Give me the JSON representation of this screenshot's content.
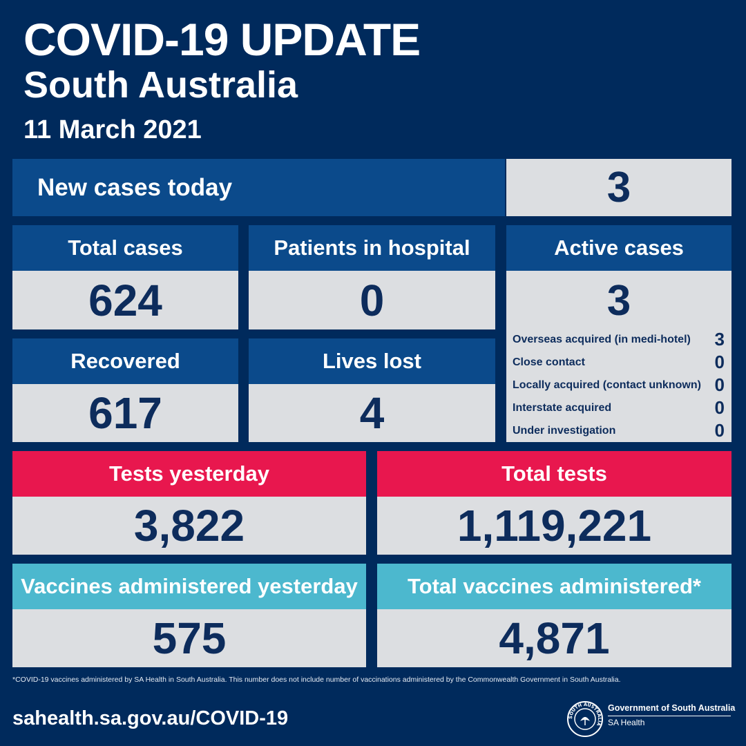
{
  "header": {
    "title": "COVID-19 UPDATE",
    "subtitle": "South Australia",
    "date": "11 March 2021"
  },
  "new_cases": {
    "label": "New cases today",
    "value": "3"
  },
  "total_cases": {
    "label": "Total cases",
    "value": "624"
  },
  "hospital": {
    "label": "Patients in hospital",
    "value": "0"
  },
  "active": {
    "label": "Active cases",
    "value": "3",
    "breakdown": [
      {
        "label": "Overseas acquired (in medi-hotel)",
        "value": "3"
      },
      {
        "label": "Close contact",
        "value": "0"
      },
      {
        "label": "Locally acquired (contact unknown)",
        "value": "0"
      },
      {
        "label": "Interstate acquired",
        "value": "0"
      },
      {
        "label": "Under investigation",
        "value": "0"
      }
    ]
  },
  "recovered": {
    "label": "Recovered",
    "value": "617"
  },
  "lives_lost": {
    "label": "Lives lost",
    "value": "4"
  },
  "tests_yesterday": {
    "label": "Tests yesterday",
    "value": "3,822"
  },
  "total_tests": {
    "label": "Total tests",
    "value": "1,119,221"
  },
  "vaccines_yesterday": {
    "label": "Vaccines administered yesterday",
    "value": "575"
  },
  "total_vaccines": {
    "label": "Total vaccines administered*",
    "value": "4,871"
  },
  "footnote": "*COVID-19 vaccines administered by SA Health in South Australia. This number does not include number of vaccinations administered by the Commonwealth Government in South Australia.",
  "footer": {
    "url": "sahealth.sa.gov.au/COVID-19",
    "gov_title": "Government of South Australia",
    "gov_sub": "SA Health",
    "seal_text": "SOUTH AUSTRALIA"
  },
  "colors": {
    "background": "#002a5c",
    "header_blue": "#0b4a8b",
    "header_red": "#e8174e",
    "header_teal": "#4cb8ce",
    "value_bg": "#dcdee1",
    "value_text": "#0d2c5c"
  }
}
